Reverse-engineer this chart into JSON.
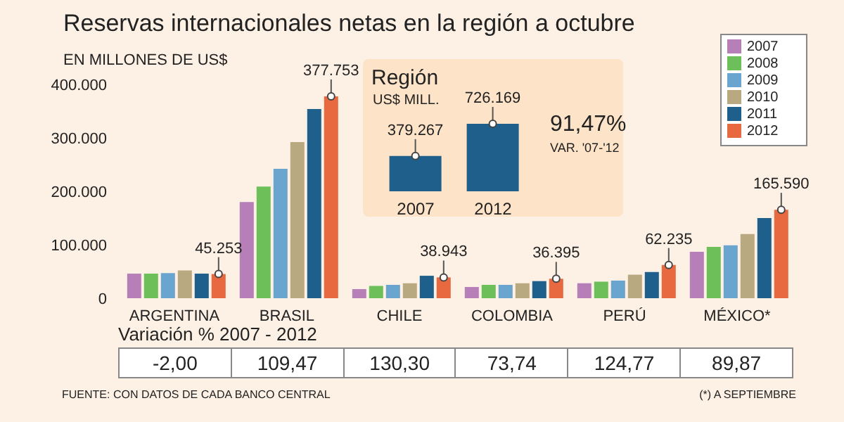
{
  "chart_data": [
    {
      "type": "bar",
      "title": "Reservas internacionales netas en la región a octubre",
      "ylabel": "EN MILLONES DE US$",
      "categories": [
        "ARGENTINA",
        "BRASIL",
        "CHILE",
        "COLOMBIA",
        "PERÚ",
        "MÉXICO*"
      ],
      "series": [
        {
          "name": "2007",
          "color": "#b77fb8",
          "values": [
            46000,
            180000,
            17000,
            21000,
            28000,
            87000
          ]
        },
        {
          "name": "2008",
          "color": "#6cbf59",
          "values": [
            46000,
            209000,
            23000,
            25000,
            31000,
            96000
          ]
        },
        {
          "name": "2009",
          "color": "#6aa5d0",
          "values": [
            47000,
            242000,
            25000,
            25000,
            33000,
            99000
          ]
        },
        {
          "name": "2010",
          "color": "#b9a980",
          "values": [
            52000,
            292000,
            28000,
            28000,
            44000,
            120000
          ]
        },
        {
          "name": "2011",
          "color": "#1f5f8b",
          "values": [
            46000,
            354000,
            42000,
            32000,
            49000,
            150000
          ]
        },
        {
          "name": "2012",
          "color": "#e8693f",
          "values": [
            45253,
            377753,
            38943,
            36395,
            62235,
            165590
          ],
          "value_labels": [
            "45.253",
            "377.753",
            "38.943",
            "36.395",
            "62.235",
            "165.590"
          ]
        }
      ],
      "ylim": [
        0,
        400000
      ],
      "yticks": [
        {
          "value": 0,
          "label": "0"
        },
        {
          "value": 100000,
          "label": "100.000"
        },
        {
          "value": 200000,
          "label": "200.000"
        },
        {
          "value": 300000,
          "label": "300.000"
        },
        {
          "value": 400000,
          "label": "400.000"
        }
      ],
      "legend": "top right",
      "annotations": [
        "Variación % 2007 - 2012",
        "-2,00",
        "109,47",
        "130,30",
        "73,74",
        "124,77",
        "89,87",
        "FUENTE: CON DATOS DE CADA BANCO CENTRAL",
        "(*) A SEPTIEMBRE"
      ]
    },
    {
      "type": "bar",
      "title": "Región",
      "ylabel": "US$ MILL.",
      "categories": [
        "2007",
        "2012"
      ],
      "values": [
        379267,
        726169
      ],
      "value_labels": [
        "379.267",
        "726.169"
      ],
      "color": "#1f5f8b",
      "annotations": [
        "91,47%",
        "VAR. '07-'12"
      ]
    }
  ]
}
